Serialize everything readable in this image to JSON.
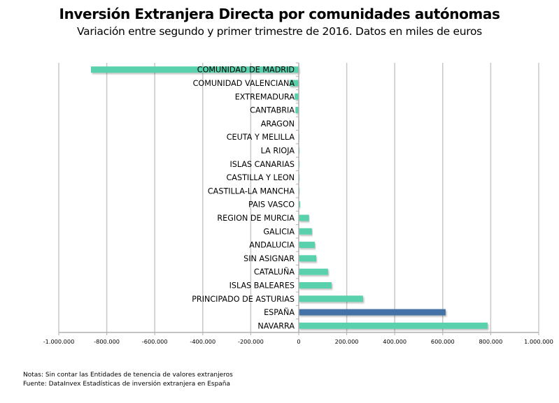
{
  "chart_data": {
    "type": "bar",
    "orientation": "horizontal",
    "title": "Inversión Extranjera Directa por comunidades autónomas",
    "subtitle": "Variación entre segundo y primer trimestre de 2016. Datos en miles de euros",
    "xlabel": "",
    "ylabel": "",
    "xlim": [
      -1000000,
      1000000
    ],
    "x_ticks": [
      -1000000,
      -800000,
      -600000,
      -400000,
      -200000,
      0,
      200000,
      400000,
      600000,
      800000,
      1000000
    ],
    "x_tick_labels": [
      "-1.000.000",
      "-800.000",
      "-600.000",
      "-400.000",
      "-200.000",
      "0",
      "200.000",
      "400.000",
      "600.000",
      "800.000",
      "1.000.000"
    ],
    "grid": "vertical",
    "legend": "none",
    "colors": {
      "default": "#5ad1ad",
      "highlight": "#4472a6"
    },
    "categories": [
      "COMUNIDAD DE MADRID",
      "COMUNIDAD VALENCIANA",
      "EXTREMADURA",
      "CANTABRIA",
      "ARAGON",
      "CEUTA Y MELILLA",
      "LA RIOJA",
      "ISLAS CANARIAS",
      "CASTILLA Y LEON",
      "CASTILLA-LA MANCHA",
      "PAIS VASCO",
      "REGION DE MURCIA",
      "GALICIA",
      "ANDALUCIA",
      "SIN ASIGNAR",
      "CATALUÑA",
      "ISLAS BALEARES",
      "PRINCIPADO DE ASTURIAS",
      "ESPAÑA",
      "NAVARRA"
    ],
    "values": [
      -866000,
      -38000,
      -17000,
      -14000,
      -1000,
      -500,
      3000,
      3000,
      3000,
      3000,
      6000,
      43000,
      55000,
      67000,
      73000,
      122000,
      137000,
      268000,
      612000,
      787000
    ],
    "highlight": [
      "ESPAÑA"
    ]
  },
  "notes": {
    "line1": "Notas: Sin contar las Entidades de tenencia de valores extranjeros",
    "line2": "Fuente: DataInvex Estadísticas de inversión extranjera en España"
  }
}
